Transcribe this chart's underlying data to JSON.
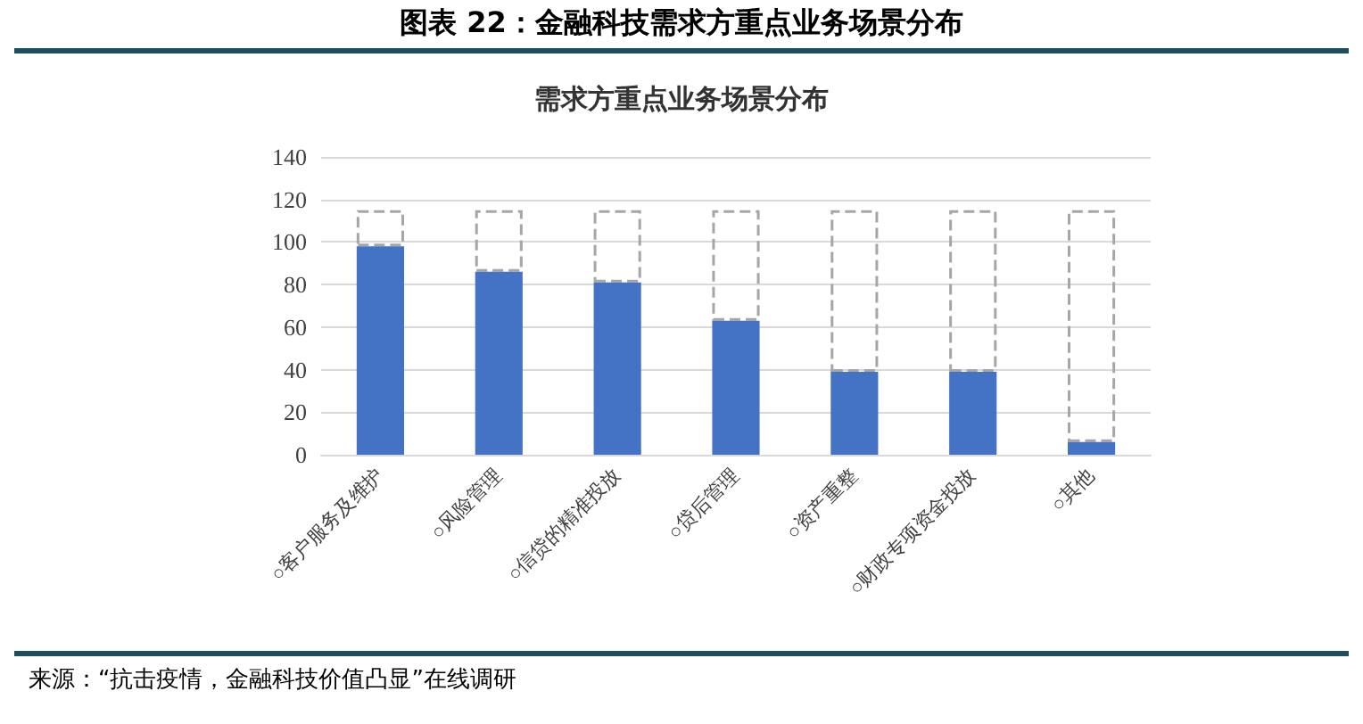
{
  "chart_data": {
    "type": "bar",
    "title": "图表 22：金融科技需求方重点业务场景分布",
    "subtitle": "需求方重点业务场景分布",
    "categories": [
      "○客户服务及维护",
      "○风险管理",
      "○信贷的精准投放",
      "○贷后管理",
      "○资产重整",
      "○财政专项资金投放",
      "○其他"
    ],
    "stacked": true,
    "series": [
      {
        "color": "#4472c4",
        "values": [
          98,
          86,
          81,
          63,
          39,
          39,
          6
        ]
      },
      {
        "color": "#a6a6a6",
        "line_style": "dashed",
        "values": [
          17,
          29,
          34,
          52,
          76,
          76,
          109
        ]
      }
    ],
    "ylim": [
      0,
      140
    ],
    "yticks": [
      0,
      20,
      40,
      60,
      80,
      100,
      120,
      140
    ],
    "grid": "y",
    "annotations": [
      "来源：“抗击疫情，金融科技价值凸显”在线调研"
    ]
  }
}
